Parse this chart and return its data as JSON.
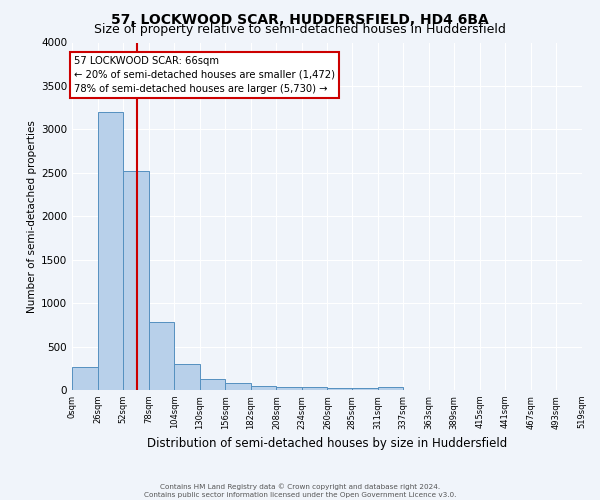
{
  "title": "57, LOCKWOOD SCAR, HUDDERSFIELD, HD4 6BA",
  "subtitle": "Size of property relative to semi-detached houses in Huddersfield",
  "xlabel": "Distribution of semi-detached houses by size in Huddersfield",
  "ylabel": "Number of semi-detached properties",
  "footnote1": "Contains HM Land Registry data © Crown copyright and database right 2024.",
  "footnote2": "Contains public sector information licensed under the Open Government Licence v3.0.",
  "bin_labels": [
    "0sqm",
    "26sqm",
    "52sqm",
    "78sqm",
    "104sqm",
    "130sqm",
    "156sqm",
    "182sqm",
    "208sqm",
    "234sqm",
    "260sqm",
    "285sqm",
    "311sqm",
    "337sqm",
    "363sqm",
    "389sqm",
    "415sqm",
    "441sqm",
    "467sqm",
    "493sqm",
    "519sqm"
  ],
  "bar_heights": [
    260,
    3200,
    2520,
    780,
    300,
    130,
    80,
    45,
    35,
    30,
    25,
    20,
    30,
    0,
    0,
    0,
    0,
    0,
    0,
    0
  ],
  "bin_edges": [
    0,
    26,
    52,
    78,
    104,
    130,
    156,
    182,
    208,
    234,
    260,
    285,
    311,
    337,
    363,
    389,
    415,
    441,
    467,
    493,
    519
  ],
  "bar_color": "#b8d0ea",
  "bar_edge_color": "#5590c0",
  "property_size": 66,
  "vline_color": "#cc0000",
  "annotation_text": "57 LOCKWOOD SCAR: 66sqm\n← 20% of semi-detached houses are smaller (1,472)\n78% of semi-detached houses are larger (5,730) →",
  "annotation_box_color": "#ffffff",
  "annotation_box_edge": "#cc0000",
  "ylim": [
    0,
    4000
  ],
  "background_color": "#f0f4fa",
  "grid_color": "#ffffff",
  "title_fontsize": 10,
  "subtitle_fontsize": 9
}
